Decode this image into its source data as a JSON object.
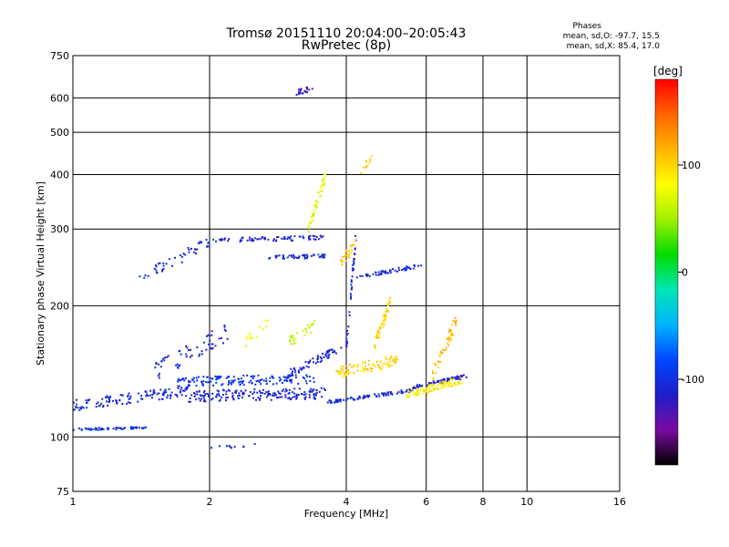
{
  "chart_data": {
    "type": "scatter",
    "title": "Tromsø 20151110 20:04:00–20:05:43",
    "subtitle": "RwPretec (8p)",
    "xlabel": "Frequency [MHz]",
    "ylabel": "Stationary phase Virtual Height [km]",
    "x_scale": "log",
    "y_scale": "log",
    "xlim": [
      1,
      16
    ],
    "ylim": [
      75,
      750
    ],
    "x_ticks": [
      1,
      2,
      4,
      6,
      8,
      10,
      16
    ],
    "x_tick_labels": [
      "1",
      "2",
      "4",
      "6",
      "8",
      "10",
      "16"
    ],
    "y_ticks": [
      75,
      100,
      200,
      300,
      400,
      500,
      600,
      750
    ],
    "y_tick_labels": [
      "75",
      "100",
      "200",
      "300",
      "400",
      "500",
      "600",
      "750"
    ],
    "grid": true,
    "phases": {
      "title": "Phases",
      "line_o": "mean, sd,O: -97.7, 15.5",
      "line_x": "mean, sd,X:  85.4, 17.0"
    },
    "colorbar": {
      "label": "[deg]",
      "min": -180,
      "max": 180,
      "ticks": [
        100,
        0,
        -100
      ],
      "tick_labels": [
        "100",
        "0",
        "-100"
      ],
      "colormap": [
        "#000000",
        "#7a0aa0",
        "#1e1ec8",
        "#0046ff",
        "#00b4ff",
        "#00e6b4",
        "#00dc00",
        "#a0f000",
        "#ffff00",
        "#ffb400",
        "#ff6400",
        "#ff0000"
      ]
    },
    "series": [
      {
        "segments": [
          {
            "f": [
              1.0,
              1.45
            ],
            "h": [
              104,
              105
            ],
            "phase": -100,
            "n": 60,
            "spread": 0.006
          },
          {
            "f": [
              1.0,
              1.8
            ],
            "h": [
              118,
              128
            ],
            "phase": -105,
            "n": 120,
            "spread": 0.03
          },
          {
            "f": [
              1.8,
              3.6
            ],
            "h": [
              124,
              126
            ],
            "phase": -110,
            "n": 170,
            "spread": 0.03
          },
          {
            "f": [
              1.7,
              3.4
            ],
            "h": [
              134,
              136
            ],
            "phase": -95,
            "n": 150,
            "spread": 0.025
          },
          {
            "f": [
              3.6,
              5.6
            ],
            "h": [
              120,
              128
            ],
            "phase": -105,
            "n": 90,
            "spread": 0.008
          },
          {
            "f": [
              5.6,
              7.4
            ],
            "h": [
              130,
              138
            ],
            "phase": -110,
            "n": 70,
            "spread": 0.01
          },
          {
            "f": [
              3.0,
              3.9
            ],
            "h": [
              140,
              160
            ],
            "phase": -110,
            "n": 60,
            "spread": 0.02
          },
          {
            "f": [
              1.5,
              2.2
            ],
            "h": [
              140,
              175
            ],
            "phase": -110,
            "n": 60,
            "spread": 0.05
          },
          {
            "f": [
              1.4,
              2.0
            ],
            "h": [
              230,
              280
            ],
            "phase": -105,
            "n": 45,
            "spread": 0.03
          },
          {
            "f": [
              2.0,
              3.6
            ],
            "h": [
              282,
              287
            ],
            "phase": -110,
            "n": 70,
            "spread": 0.012
          },
          {
            "f": [
              2.7,
              3.6
            ],
            "h": [
              258,
              260
            ],
            "phase": -105,
            "n": 50,
            "spread": 0.01
          },
          {
            "f": [
              4.2,
              5.9
            ],
            "h": [
              232,
              248
            ],
            "phase": -105,
            "n": 55,
            "spread": 0.01
          },
          {
            "f": [
              4.0,
              4.2
            ],
            "h": [
              160,
              290
            ],
            "phase": -110,
            "n": 40,
            "spread": 0.04
          },
          {
            "f": [
              3.1,
              3.4
            ],
            "h": [
              615,
              635
            ],
            "phase": -125,
            "n": 25,
            "spread": 0.015
          },
          {
            "f": [
              2.0,
              2.6
            ],
            "h": [
              94,
              96
            ],
            "phase": -110,
            "n": 10,
            "spread": 0.01
          }
        ]
      },
      {
        "segments": [
          {
            "f": [
              3.8,
              5.2
            ],
            "h": [
              140,
              150
            ],
            "phase": 100,
            "n": 90,
            "spread": 0.03
          },
          {
            "f": [
              4.6,
              5.0
            ],
            "h": [
              160,
              205
            ],
            "phase": 100,
            "n": 45,
            "spread": 0.03
          },
          {
            "f": [
              5.4,
              7.2
            ],
            "h": [
              125,
              135
            ],
            "phase": 90,
            "n": 90,
            "spread": 0.02
          },
          {
            "f": [
              6.2,
              7.0
            ],
            "h": [
              140,
              185
            ],
            "phase": 110,
            "n": 45,
            "spread": 0.04
          },
          {
            "f": [
              3.3,
              3.6
            ],
            "h": [
              300,
              400
            ],
            "phase": 70,
            "n": 45,
            "spread": 0.03
          },
          {
            "f": [
              3.0,
              3.4
            ],
            "h": [
              165,
              180
            ],
            "phase": 60,
            "n": 25,
            "spread": 0.03
          },
          {
            "f": [
              3.9,
              4.2
            ],
            "h": [
              255,
              275
            ],
            "phase": 110,
            "n": 25,
            "spread": 0.03
          },
          {
            "f": [
              4.3,
              4.6
            ],
            "h": [
              410,
              440
            ],
            "phase": 100,
            "n": 10,
            "spread": 0.02
          },
          {
            "f": [
              2.4,
              2.7
            ],
            "h": [
              165,
              185
            ],
            "phase": 80,
            "n": 15,
            "spread": 0.03
          }
        ]
      }
    ]
  }
}
